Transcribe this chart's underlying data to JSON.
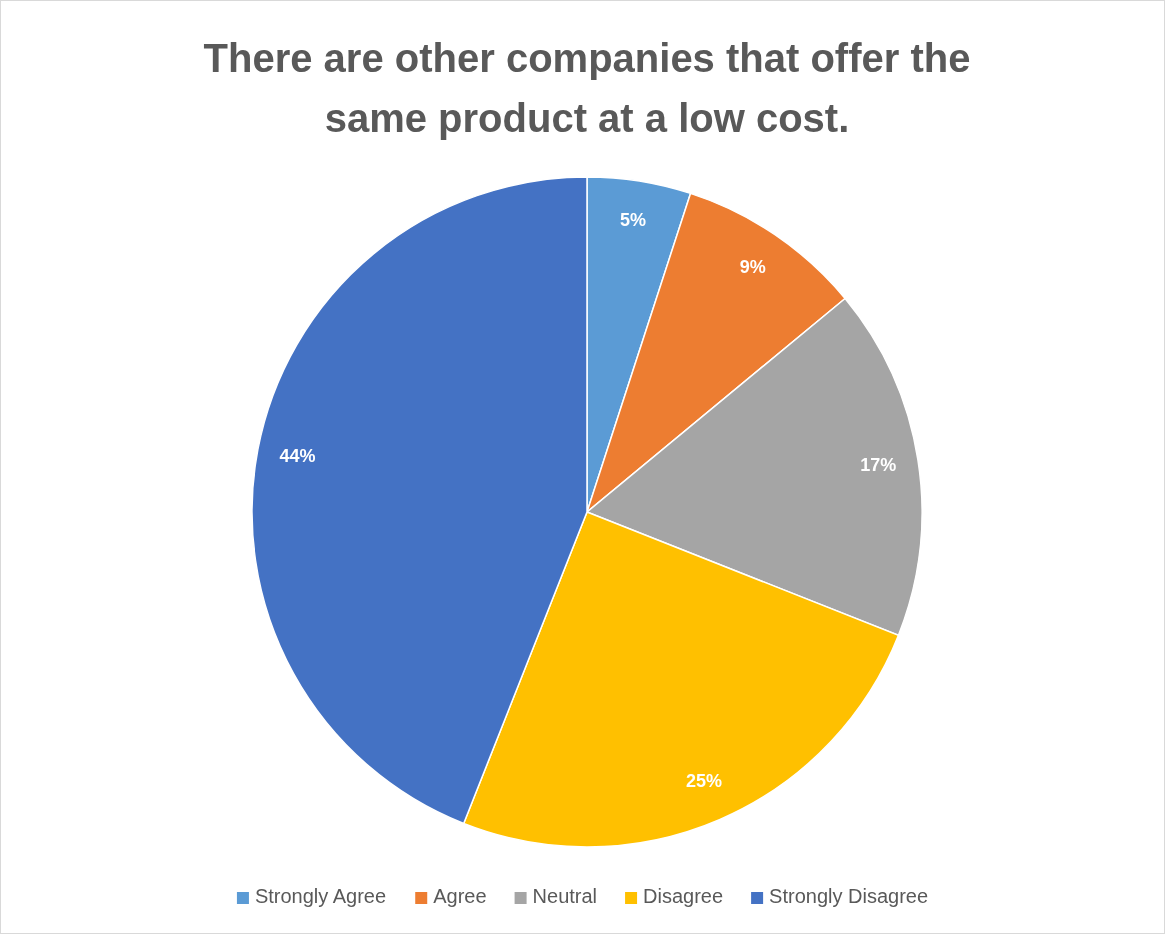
{
  "chart_data": {
    "type": "pie",
    "title": "There are other companies that offer the same product at a low cost.",
    "categories": [
      "Strongly Agree",
      "Agree",
      "Neutral",
      "Disagree",
      "Strongly Disagree"
    ],
    "values": [
      5,
      9,
      17,
      25,
      44
    ],
    "colors": [
      "#5b9bd5",
      "#ed7d31",
      "#a5a5a5",
      "#ffc000",
      "#4472c4"
    ],
    "value_labels": [
      "5%",
      "9%",
      "17%",
      "25%",
      "44%"
    ],
    "legend": "bottom"
  }
}
